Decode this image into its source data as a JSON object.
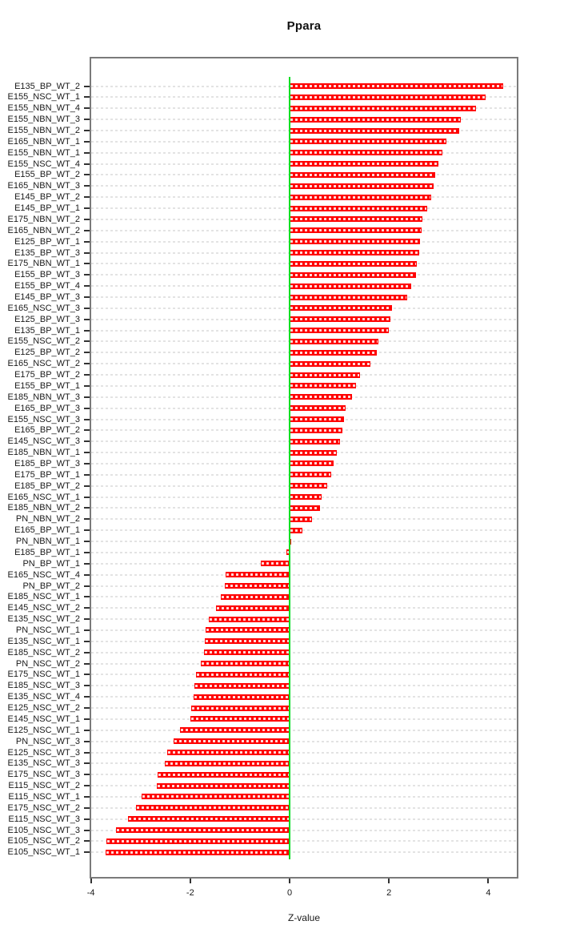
{
  "title": "Ppara",
  "xaxis": {
    "label": "Z-value",
    "ticks": [
      -4,
      -2,
      0,
      2,
      4
    ]
  },
  "chart_data": {
    "type": "bar",
    "orientation": "horizontal",
    "title": "Ppara",
    "xlabel": "Z-value",
    "xlim": [
      -4.03,
      4.6
    ],
    "xticks": [
      -4,
      -2,
      0,
      2,
      4
    ],
    "grid": true,
    "bar_color": "#ff0000",
    "zero_line_color": "#00dd22",
    "categories": [
      "E135_BP_WT_2",
      "E155_NSC_WT_1",
      "E155_NBN_WT_4",
      "E155_NBN_WT_3",
      "E155_NBN_WT_2",
      "E165_NBN_WT_1",
      "E155_NBN_WT_1",
      "E155_NSC_WT_4",
      "E155_BP_WT_2",
      "E165_NBN_WT_3",
      "E145_BP_WT_2",
      "E145_BP_WT_1",
      "E175_NBN_WT_2",
      "E165_NBN_WT_2",
      "E125_BP_WT_1",
      "E135_BP_WT_3",
      "E175_NBN_WT_1",
      "E155_BP_WT_3",
      "E155_BP_WT_4",
      "E145_BP_WT_3",
      "E165_NSC_WT_3",
      "E125_BP_WT_3",
      "E135_BP_WT_1",
      "E155_NSC_WT_2",
      "E125_BP_WT_2",
      "E165_NSC_WT_2",
      "E175_BP_WT_2",
      "E155_BP_WT_1",
      "E185_NBN_WT_3",
      "E165_BP_WT_3",
      "E155_NSC_WT_3",
      "E165_BP_WT_2",
      "E145_NSC_WT_3",
      "E185_NBN_WT_1",
      "E185_BP_WT_3",
      "E175_BP_WT_1",
      "E185_BP_WT_2",
      "E165_NSC_WT_1",
      "E185_NBN_WT_2",
      "PN_NBN_WT_2",
      "E165_BP_WT_1",
      "PN_NBN_WT_1",
      "E185_BP_WT_1",
      "PN_BP_WT_1",
      "E165_NSC_WT_4",
      "PN_BP_WT_2",
      "E185_NSC_WT_1",
      "E145_NSC_WT_2",
      "E135_NSC_WT_2",
      "PN_NSC_WT_1",
      "E135_NSC_WT_1",
      "E185_NSC_WT_2",
      "PN_NSC_WT_2",
      "E175_NSC_WT_1",
      "E185_NSC_WT_3",
      "E135_NSC_WT_4",
      "E125_NSC_WT_2",
      "E145_NSC_WT_1",
      "E125_NSC_WT_1",
      "PN_NSC_WT_3",
      "E125_NSC_WT_3",
      "E135_NSC_WT_3",
      "E175_NSC_WT_3",
      "E115_NSC_WT_2",
      "E115_NSC_WT_1",
      "E175_NSC_WT_2",
      "E115_NSC_WT_3",
      "E105_NSC_WT_3",
      "E105_NSC_WT_2",
      "E105_NSC_WT_1"
    ],
    "values": [
      4.3,
      3.94,
      3.75,
      3.45,
      3.42,
      3.15,
      3.08,
      2.99,
      2.93,
      2.89,
      2.85,
      2.77,
      2.68,
      2.65,
      2.62,
      2.6,
      2.56,
      2.54,
      2.45,
      2.36,
      2.06,
      2.03,
      1.99,
      1.78,
      1.76,
      1.63,
      1.41,
      1.34,
      1.26,
      1.13,
      1.1,
      1.07,
      1.02,
      0.95,
      0.88,
      0.84,
      0.75,
      0.64,
      0.61,
      0.45,
      0.25,
      0.03,
      -0.07,
      -0.58,
      -1.29,
      -1.31,
      -1.38,
      -1.48,
      -1.62,
      -1.69,
      -1.7,
      -1.72,
      -1.79,
      -1.89,
      -1.91,
      -1.94,
      -1.98,
      -1.99,
      -2.21,
      -2.34,
      -2.46,
      -2.51,
      -2.66,
      -2.67,
      -2.98,
      -3.09,
      -3.25,
      -3.5,
      -3.69,
      -3.7
    ]
  }
}
